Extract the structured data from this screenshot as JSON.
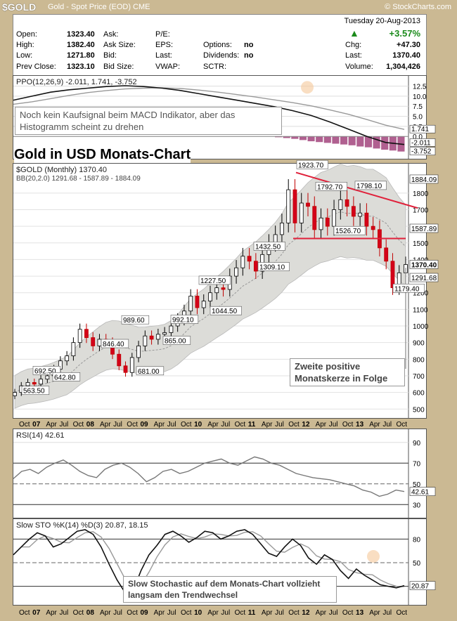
{
  "header": {
    "symbol": "$GOLD",
    "description": "Gold - Spot Price (EOD)",
    "exchange": "CME",
    "brand": "© StockCharts.com"
  },
  "quote": {
    "date": "Tuesday  20-Aug-2013",
    "change_pct": "+3.57%",
    "up_color": "#1a8a1a",
    "fields": [
      {
        "label": "Open:",
        "value": "1323.40"
      },
      {
        "label": "High:",
        "value": "1382.40"
      },
      {
        "label": "Low:",
        "value": "1271.80"
      },
      {
        "label": "Prev Close:",
        "value": "1323.10"
      }
    ],
    "mid_labels": [
      "Ask:",
      "Ask Size:",
      "Bid:",
      "Bid Size:"
    ],
    "mid2_labels": [
      "P/E:",
      "EPS:",
      "Last:",
      "VWAP:"
    ],
    "mid3": [
      {
        "label": "Options:",
        "value": "no"
      },
      {
        "label": "Dividends:",
        "value": "no"
      },
      {
        "label": "SCTR:",
        "value": ""
      }
    ],
    "right": [
      {
        "label": "Chg:",
        "value": "+47.30"
      },
      {
        "label": "Last:",
        "value": "1370.40"
      },
      {
        "label": "Volume:",
        "value": "1,304,426"
      }
    ]
  },
  "annotations": {
    "ppo_note": "Noch kein Kaufsignal beim MACD Indikator, aber das Histogramm scheint zu drehen",
    "title": "Gold in USD Monats-Chart",
    "candle_note": "Zweite positive Monatskerze in Folge",
    "stoch_note": "Slow Stochastic auf dem Monats-Chart vollzieht langsam den Trendwechsel"
  },
  "chart_data": [
    {
      "type": "line",
      "panel": "PPO",
      "legend": "PPO(12,26,9) -2.011, 1.741, -3.752",
      "y_ticks": [
        12.5,
        10.0,
        7.5,
        5.0,
        2.5,
        0.0
      ],
      "ylim": [
        -4.5,
        14
      ],
      "values_labels": [
        "1.741",
        "-2.011",
        "-3.752"
      ],
      "ppo": [
        9,
        10,
        11,
        11.6,
        12,
        12.4,
        12.6,
        12.4,
        12,
        11.4,
        10.6,
        9.8,
        9,
        8.2,
        7.4,
        6.4,
        5.2,
        3.6,
        1.8,
        0,
        -1.5,
        -2.01
      ],
      "signal": [
        8,
        8.6,
        9.4,
        10.2,
        10.9,
        11.4,
        11.8,
        12,
        12.1,
        11.9,
        11.5,
        11,
        10.4,
        9.8,
        9.1,
        8.4,
        7.6,
        6.6,
        5.5,
        4.2,
        2.8,
        1.74
      ],
      "histogram": [
        -0.2,
        -0.4,
        -0.6,
        -0.9,
        -1.2,
        -1.4,
        -1.6,
        -1.8,
        -2,
        -2.2,
        -2.5,
        -2.7,
        -3,
        -3.3,
        -3.5,
        -3.75
      ]
    },
    {
      "type": "candlestick",
      "panel": "price",
      "legend": "$GOLD (Monthly) 1370.40",
      "bb_legend": "BB(20,2.0) 1291.68 - 1587.89 - 1884.09",
      "y_ticks": [
        500,
        600,
        700,
        800,
        900,
        1000,
        1100,
        1200,
        1300,
        1400,
        1500,
        1600,
        1700,
        1800
      ],
      "ylim": [
        480,
        1960
      ],
      "right_labels": [
        "1884.09",
        "1587.89",
        "1370.40",
        "1291.68"
      ],
      "x_ticks": [
        "Oct",
        "07",
        "Apr",
        "Jul",
        "Oct",
        "08",
        "Apr",
        "Jul",
        "Oct",
        "09",
        "Apr",
        "Jul",
        "Oct",
        "10",
        "Apr",
        "Jul",
        "Oct",
        "11",
        "Apr",
        "Jul",
        "Oct",
        "12",
        "Apr",
        "Jul",
        "Oct",
        "13",
        "Apr",
        "Jul",
        "Oct"
      ],
      "price_labels": [
        "563.50",
        "692.50",
        "642.80",
        "989.60",
        "846.40",
        "681.00",
        "992.10",
        "865.00",
        "1227.50",
        "1044.50",
        "1432.50",
        "1309.10",
        "1923.70",
        "1792.70",
        "1526.70",
        "1798.10",
        "1179.40"
      ],
      "closes": [
        600,
        640,
        660,
        650,
        680,
        700,
        740,
        790,
        820,
        900,
        980,
        930,
        880,
        920,
        900,
        830,
        760,
        720,
        810,
        880,
        940,
        920,
        950,
        960,
        1000,
        1040,
        1090,
        1180,
        1110,
        1150,
        1200,
        1230,
        1220,
        1300,
        1350,
        1420,
        1390,
        1330,
        1430,
        1500,
        1550,
        1620,
        1820,
        1620,
        1740,
        1720,
        1580,
        1650,
        1600,
        1700,
        1760,
        1720,
        1660,
        1680,
        1600,
        1580,
        1470,
        1390,
        1230,
        1320,
        1370
      ]
    },
    {
      "type": "line",
      "panel": "RSI",
      "legend": "RSI(14) 42.61",
      "y_ticks": [
        90,
        70,
        50,
        30
      ],
      "ylim": [
        20,
        100
      ],
      "value_label": "42.61"
    },
    {
      "type": "line",
      "panel": "Slow STO",
      "legend": "Slow STO %K(14) %D(3) 20.87, 18.15",
      "y_ticks": [
        80,
        50,
        20
      ],
      "ylim": [
        0,
        100
      ],
      "value_label": "20.87",
      "x_ticks": [
        "Oct",
        "07",
        "Apr",
        "Jul",
        "Oct",
        "08",
        "Apr",
        "Jul",
        "Oct",
        "09",
        "Apr",
        "Jul",
        "Oct",
        "10",
        "Apr",
        "Jul",
        "Oct",
        "11",
        "Apr",
        "Jul",
        "Oct",
        "12",
        "Apr",
        "Jul",
        "Oct",
        "13",
        "Apr",
        "Jul",
        "Oct"
      ]
    }
  ]
}
